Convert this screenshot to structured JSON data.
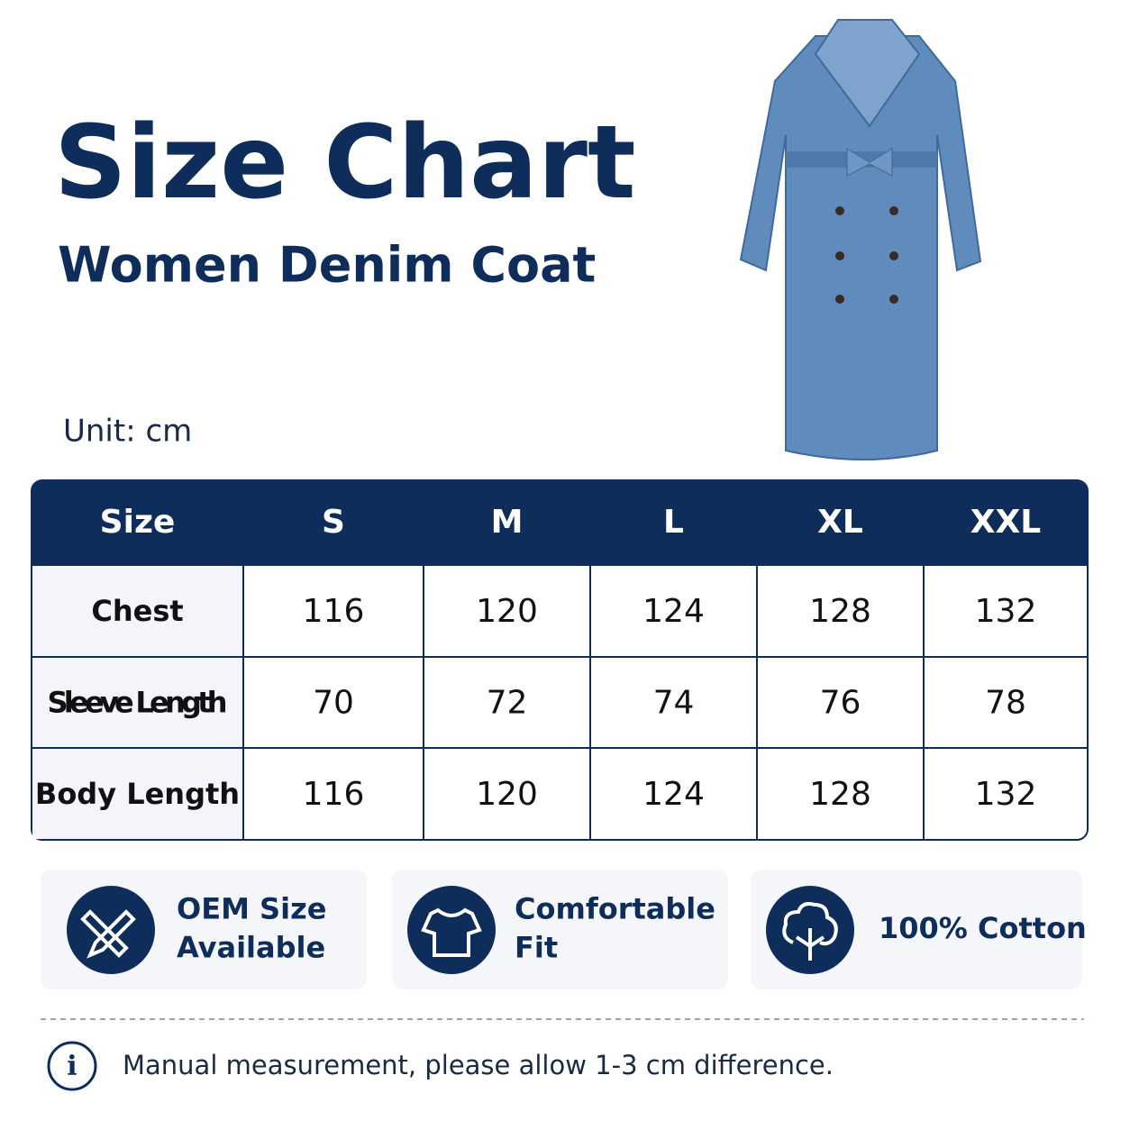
{
  "header": {
    "title": "Size Chart",
    "subtitle": "Women Denim Coat",
    "unit": "Unit: cm"
  },
  "table": {
    "header": [
      "Size",
      "S",
      "M",
      "L",
      "XL",
      "XXL"
    ],
    "rows": [
      [
        "Chest",
        116,
        120,
        124,
        128,
        132
      ],
      [
        "Sleeve Length",
        70,
        72,
        74,
        76,
        78
      ],
      [
        "Body Length",
        116,
        120,
        124,
        128,
        132
      ]
    ]
  },
  "features": [
    {
      "lines": [
        "OEM Size",
        "Available"
      ]
    },
    {
      "lines": [
        "Comfortable",
        "Fit"
      ]
    },
    {
      "lines": [
        "100% Cotton"
      ]
    }
  ],
  "note": "Manual measurement, please allow 1-3 cm difference."
}
